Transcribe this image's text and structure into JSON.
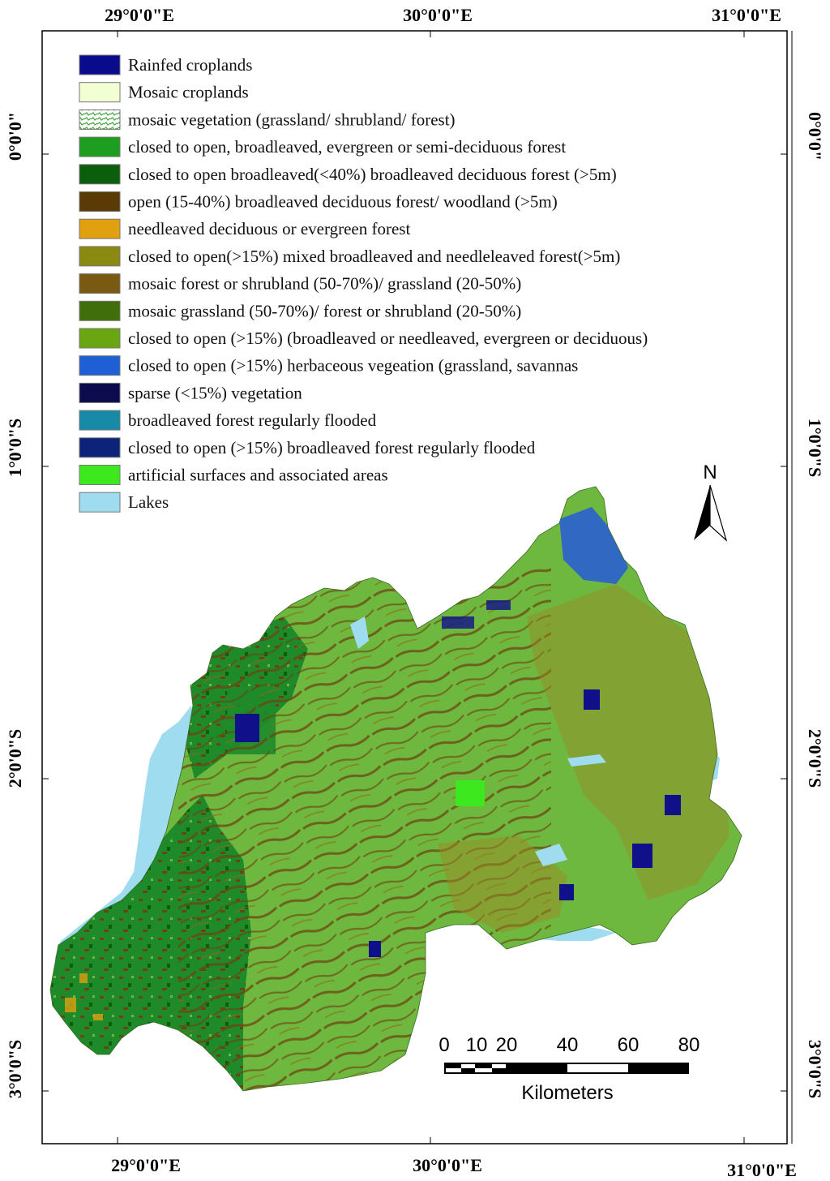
{
  "frame": {
    "top_labels": [
      "29°0'0\"E",
      "30°0'0\"E",
      "31°0'0\"E"
    ],
    "bottom_labels": [
      "29°0'0\"E",
      "30°0'0\"E",
      "31°0'0\"E"
    ],
    "left_labels": [
      "0°0'0\"",
      "1°0'0\"S",
      "2°0'0\"S",
      "3°0'0\"S"
    ],
    "right_labels": [
      "0°0'0\"",
      "1°0'0\"S",
      "2°0'0\"S",
      "3°0'0\"S"
    ]
  },
  "legend": {
    "items": [
      {
        "label": "Rainfed croplands",
        "color": "#0a0a8c"
      },
      {
        "label": "Mosaic croplands",
        "color": "#f2ffd2"
      },
      {
        "label": "mosaic vegetation (grassland/ shrubland/ forest)",
        "color": "#ffffff",
        "pattern": "mosaic"
      },
      {
        "label": "closed to open, broadleaved, evergreen or semi-deciduous forest",
        "color": "#1e9e1e"
      },
      {
        "label": "closed to open broadleaved(<40%) broadleaved deciduous forest (>5m)",
        "color": "#0b5e0b"
      },
      {
        "label": "open (15-40%) broadleaved deciduous forest/ woodland (>5m)",
        "color": "#5a3a05"
      },
      {
        "label": "needleaved deciduous or evergreen forest",
        "color": "#e0a010"
      },
      {
        "label": "closed to open(>15%) mixed broadleaved and needleleaved forest(>5m)",
        "color": "#8a8a10"
      },
      {
        "label": "mosaic forest or shrubland (50-70%)/ grassland (20-50%)",
        "color": "#7a5a12"
      },
      {
        "label": "mosaic grassland (50-70%)/ forest or shrubland (20-50%)",
        "color": "#3f6e0a"
      },
      {
        "label": "closed to open (>15%) (broadleaved or needleaved, evergreen or deciduous)",
        "color": "#6aa612"
      },
      {
        "label": "closed to open (>15%) herbaceous vegeation (grassland, savannas",
        "color": "#1f5fd6"
      },
      {
        "label": "sparse (<15%) vegetation",
        "color": "#0b0b4e"
      },
      {
        "label": "broadleaved forest regularly flooded",
        "color": "#168aa6"
      },
      {
        "label": "closed to open (>15%) broadleaved forest regularly flooded",
        "color": "#0d237a"
      },
      {
        "label": "artificial surfaces and associated areas",
        "color": "#3ee81e"
      },
      {
        "label": "Lakes",
        "color": "#9fdcf0"
      }
    ]
  },
  "north_arrow": {
    "label": "N"
  },
  "scale_bar": {
    "ticks": [
      "0",
      "10",
      "20",
      "40",
      "60",
      "80"
    ],
    "unit": "Kilometers"
  },
  "map_colors": {
    "main_green": "#6fb83f",
    "dark_forest": "#1e8a2a",
    "brown": "#6b4510",
    "olive": "#9a8a25",
    "lake": "#9fdcf0",
    "herbaceous_blue": "#2a5fd0",
    "croplands_blue": "#10108a",
    "artificial": "#3ee81e"
  }
}
